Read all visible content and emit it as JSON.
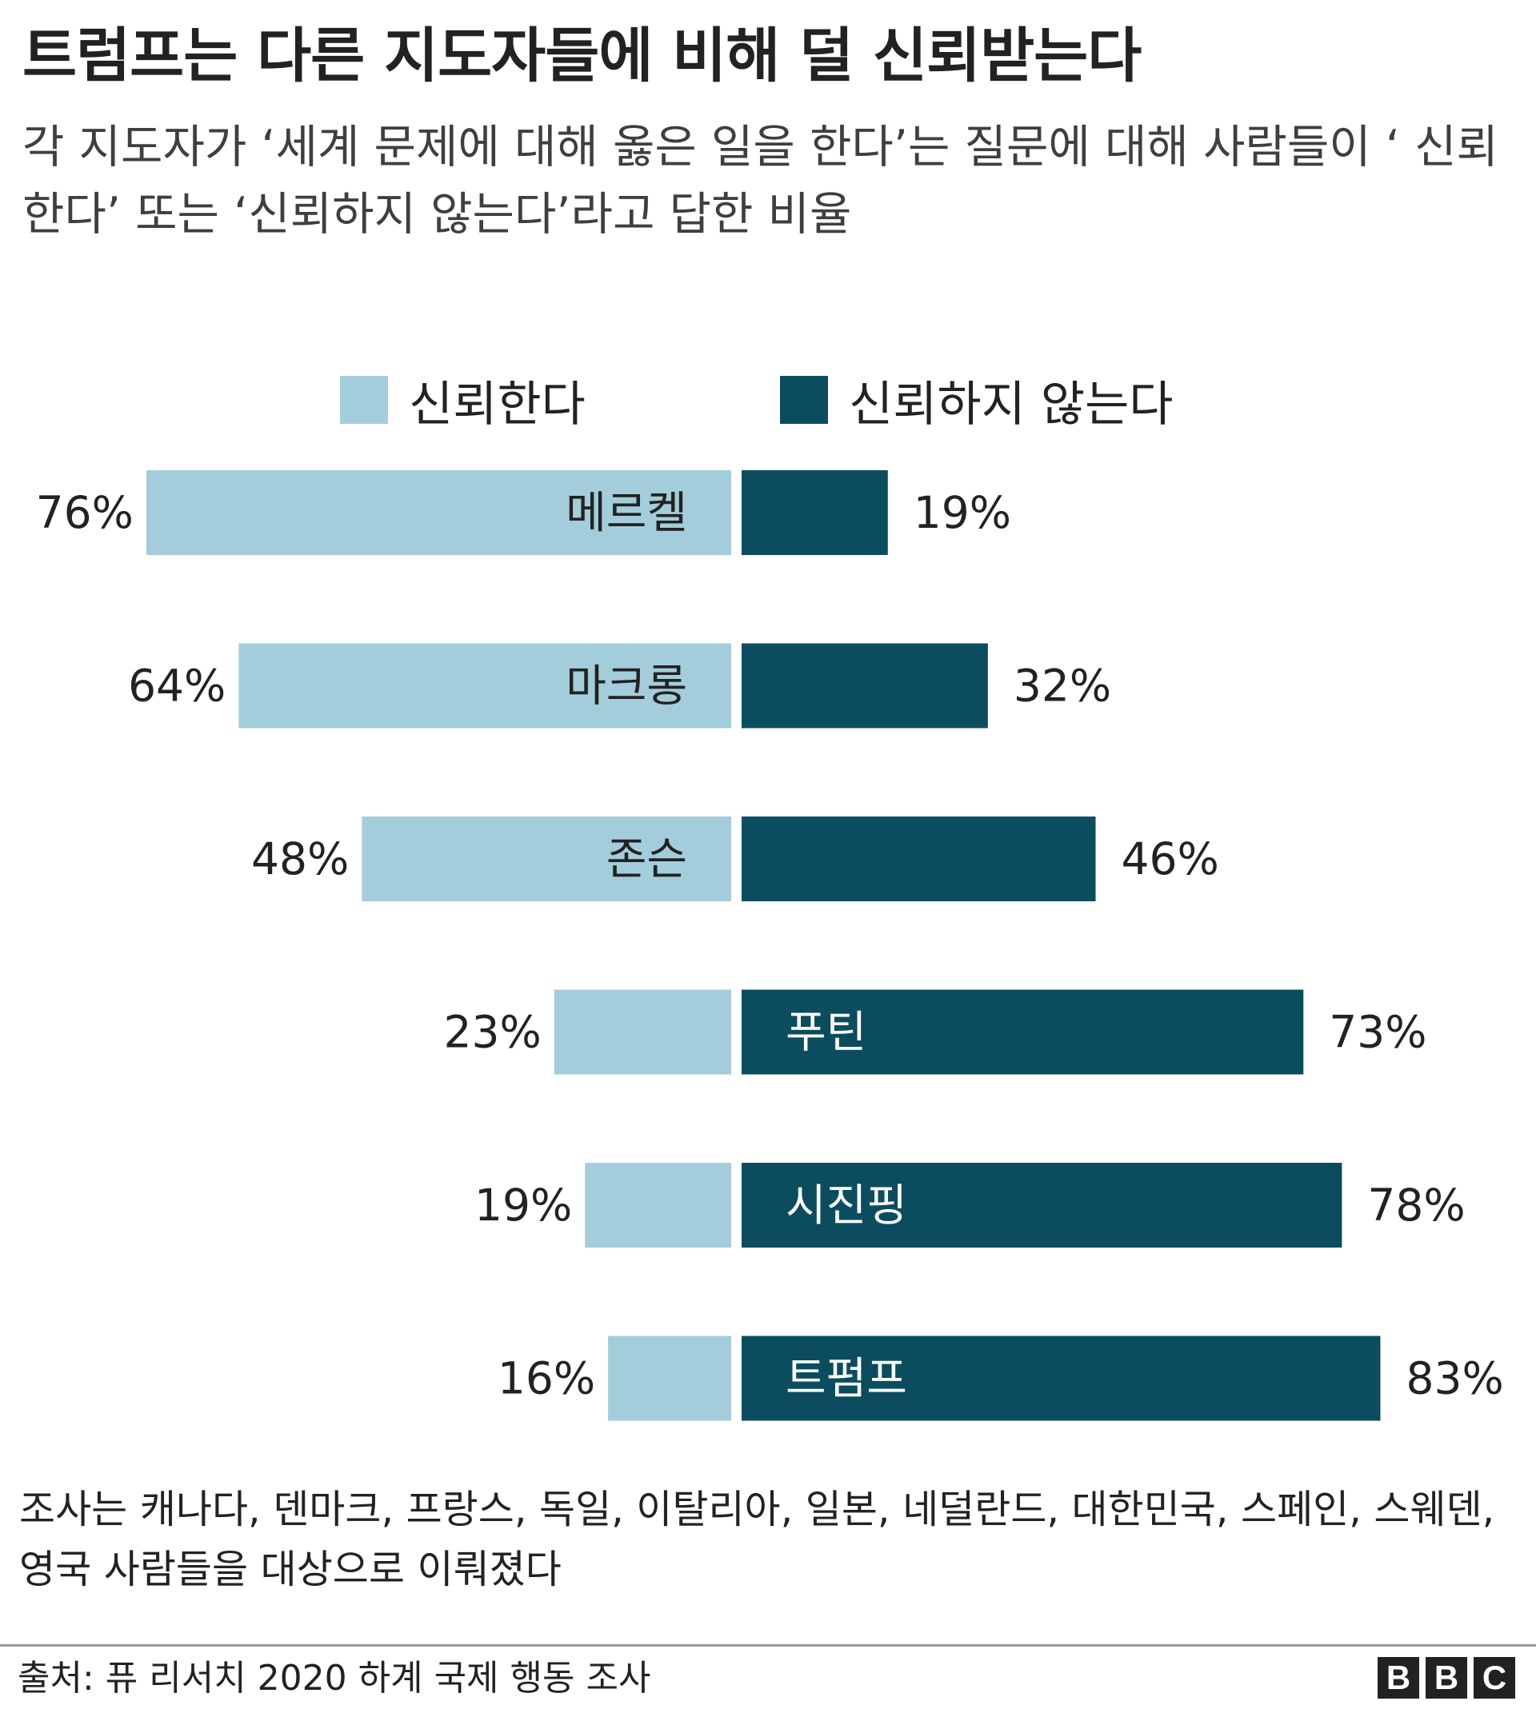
{
  "title": "트럼프는 다른 지도자들에 비해 덜 신뢰받는다",
  "subtitle": "각 지도자가 ‘세계 문제에 대해 옳은 일을 한다’는 질문에 대해 사람들이 ‘ 신뢰한다’ 또는 ‘신뢰하지 않는다’라고 답한 비율",
  "legend": {
    "trust": "신뢰한다",
    "distrust": "신뢰하지 않는다"
  },
  "colors": {
    "trust": "#a3cdda",
    "distrust": "#0b4d5e",
    "label_on_light": "#222222",
    "label_on_dark": "#ffffff"
  },
  "chart_data": {
    "type": "bar",
    "orientation": "horizontal-diverging",
    "categories": [
      "메르켈",
      "마크롱",
      "존슨",
      "푸틴",
      "시진핑",
      "트펌프"
    ],
    "series": [
      {
        "name": "신뢰한다",
        "values": [
          76,
          64,
          48,
          23,
          19,
          16
        ]
      },
      {
        "name": "신뢰하지 않는다",
        "values": [
          19,
          32,
          46,
          73,
          78,
          83
        ]
      }
    ],
    "value_suffix": "%",
    "legend_position": "top",
    "grid": false
  },
  "note": "조사는 캐나다, 덴마크, 프랑스, 독일, 이탈리아, 일본, 네덜란드, 대한민국, 스페인, 스웨덴, 영국 사람들을 대상으로 이뤄졌다",
  "source": "출처: 퓨 리서치 2020 하계 국제 행동 조사",
  "logo": [
    "B",
    "B",
    "C"
  ]
}
